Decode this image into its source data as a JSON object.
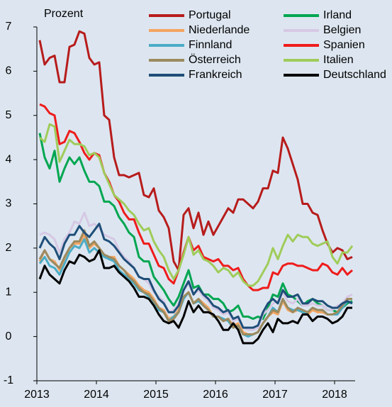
{
  "chart_data": {
    "type": "line",
    "y_label": "Prozent",
    "categories": [
      "2013",
      null,
      null,
      null,
      null,
      null,
      null,
      null,
      null,
      null,
      null,
      null,
      "2014",
      null,
      null,
      null,
      null,
      null,
      null,
      null,
      null,
      null,
      null,
      null,
      "2015",
      null,
      null,
      null,
      null,
      null,
      null,
      null,
      null,
      null,
      null,
      null,
      "2016",
      null,
      null,
      null,
      null,
      null,
      null,
      null,
      null,
      null,
      null,
      null,
      "2017",
      null,
      null,
      null,
      null,
      null,
      null,
      null,
      null,
      null,
      null,
      null,
      "2018",
      null,
      null,
      null
    ],
    "ylim": [
      -1,
      7
    ],
    "yticks": [
      -1,
      0,
      1,
      2,
      3,
      4,
      5,
      6,
      7
    ],
    "legend": "upper right",
    "series": [
      {
        "name": "Portugal",
        "color": "#b71c1c",
        "values": [
          6.7,
          6.15,
          6.3,
          6.35,
          5.75,
          5.75,
          6.55,
          6.6,
          6.9,
          6.85,
          6.3,
          6.15,
          6.2,
          5.0,
          4.9,
          4.05,
          3.65,
          3.65,
          3.6,
          3.65,
          3.7,
          3.2,
          3.15,
          3.35,
          2.85,
          2.7,
          2.45,
          1.7,
          1.5,
          2.75,
          2.9,
          2.45,
          2.8,
          2.3,
          2.6,
          2.3,
          2.5,
          2.7,
          2.9,
          2.8,
          3.1,
          3.1,
          3.0,
          2.9,
          3.05,
          3.35,
          3.35,
          3.75,
          3.7,
          4.5,
          4.25,
          3.9,
          3.55,
          3.0,
          3.0,
          2.8,
          2.75,
          2.4,
          2.1,
          1.9,
          2.0,
          1.95,
          1.75,
          1.8
        ]
      },
      {
        "name": "Irland",
        "color": "#00a651",
        "values": [
          4.6,
          4.05,
          3.8,
          4.2,
          3.5,
          3.8,
          4.05,
          3.9,
          4.05,
          3.75,
          3.5,
          3.5,
          3.4,
          3.05,
          3.05,
          2.95,
          2.7,
          2.55,
          2.35,
          2.25,
          1.8,
          1.7,
          1.7,
          1.35,
          1.2,
          1.05,
          0.85,
          0.7,
          0.9,
          1.2,
          1.5,
          1.1,
          1.15,
          0.95,
          0.95,
          0.85,
          0.85,
          0.75,
          0.55,
          0.6,
          0.7,
          0.45,
          0.45,
          0.4,
          0.45,
          0.4,
          0.65,
          0.95,
          0.9,
          1.2,
          0.95,
          0.9,
          0.8,
          0.7,
          0.8,
          0.85,
          0.75,
          0.7,
          0.6,
          0.6,
          0.55,
          0.65,
          0.75,
          0.8
        ]
      },
      {
        "name": "Niederlande",
        "color": "#f4a460",
        "values": [
          1.7,
          1.95,
          1.75,
          1.7,
          1.5,
          1.75,
          2.0,
          2.1,
          2.1,
          2.3,
          2.0,
          2.1,
          2.0,
          1.85,
          1.8,
          1.8,
          1.6,
          1.5,
          1.4,
          1.3,
          1.15,
          1.05,
          1.0,
          0.85,
          0.65,
          0.6,
          0.4,
          0.45,
          0.6,
          0.9,
          1.0,
          0.75,
          0.85,
          0.75,
          0.65,
          0.45,
          0.45,
          0.35,
          0.4,
          0.25,
          0.3,
          0.1,
          0.05,
          0.05,
          0.1,
          0.3,
          0.45,
          0.55,
          0.5,
          0.8,
          0.6,
          0.55,
          0.6,
          0.55,
          0.5,
          0.6,
          0.55,
          0.55,
          0.5,
          0.5,
          0.55,
          0.7,
          0.85,
          0.85
        ]
      },
      {
        "name": "Belgien",
        "color": "#d6c8e4",
        "values": [
          2.3,
          2.35,
          2.3,
          2.2,
          1.9,
          2.2,
          2.35,
          2.6,
          2.55,
          2.8,
          2.5,
          2.55,
          2.45,
          2.3,
          2.25,
          2.2,
          1.95,
          1.8,
          1.7,
          1.55,
          1.35,
          1.3,
          1.2,
          1.0,
          0.9,
          0.8,
          0.55,
          0.6,
          0.75,
          1.05,
          1.2,
          0.95,
          1.05,
          0.9,
          0.8,
          0.65,
          0.6,
          0.5,
          0.55,
          0.35,
          0.4,
          0.2,
          0.15,
          0.15,
          0.2,
          0.5,
          0.6,
          0.75,
          0.8,
          1.0,
          0.8,
          0.75,
          0.85,
          0.7,
          0.7,
          0.75,
          0.7,
          0.7,
          0.6,
          0.6,
          0.7,
          0.75,
          0.9,
          0.95
        ]
      },
      {
        "name": "Finnland",
        "color": "#4bacc6",
        "values": [
          1.65,
          1.8,
          1.6,
          1.55,
          1.4,
          1.65,
          1.9,
          2.05,
          2.0,
          2.2,
          1.9,
          2.0,
          1.9,
          1.8,
          1.75,
          1.7,
          1.5,
          1.4,
          1.3,
          1.2,
          1.05,
          1.0,
          0.9,
          0.75,
          0.6,
          0.55,
          0.35,
          0.45,
          0.55,
          0.85,
          1.0,
          0.75,
          0.8,
          0.7,
          0.6,
          0.45,
          0.45,
          0.4,
          0.35,
          0.2,
          0.25,
          0.05,
          0.0,
          0.05,
          0.1,
          0.3,
          0.45,
          0.65,
          0.55,
          0.85,
          0.65,
          0.6,
          0.6,
          0.55,
          0.55,
          0.65,
          0.6,
          0.6,
          0.5,
          0.5,
          0.5,
          0.65,
          0.8,
          0.75
        ]
      },
      {
        "name": "Spanien",
        "color": "#ee1c1c",
        "values": [
          5.25,
          5.2,
          5.05,
          5.0,
          4.35,
          4.4,
          4.65,
          4.6,
          4.4,
          4.15,
          4.0,
          4.15,
          4.1,
          3.7,
          3.5,
          3.2,
          3.05,
          2.8,
          2.65,
          2.65,
          2.35,
          2.1,
          2.1,
          1.85,
          1.6,
          1.55,
          1.3,
          1.2,
          1.5,
          1.9,
          2.25,
          1.95,
          2.05,
          1.8,
          1.75,
          1.7,
          1.75,
          1.6,
          1.6,
          1.5,
          1.55,
          1.3,
          1.15,
          1.05,
          1.05,
          1.1,
          1.1,
          1.45,
          1.4,
          1.6,
          1.65,
          1.65,
          1.6,
          1.6,
          1.55,
          1.5,
          1.5,
          1.65,
          1.6,
          1.45,
          1.4,
          1.55,
          1.4,
          1.5
        ]
      },
      {
        "name": "Österreich",
        "color": "#9c8a5f",
        "values": [
          1.75,
          1.95,
          1.75,
          1.65,
          1.55,
          1.8,
          2.0,
          2.15,
          2.15,
          2.4,
          2.05,
          2.15,
          2.0,
          1.85,
          1.8,
          1.75,
          1.6,
          1.5,
          1.35,
          1.25,
          1.1,
          1.0,
          0.95,
          0.8,
          0.65,
          0.55,
          0.35,
          0.4,
          0.55,
          0.9,
          1.0,
          0.75,
          0.85,
          0.7,
          0.6,
          0.45,
          0.45,
          0.35,
          0.4,
          0.2,
          0.25,
          0.05,
          0.05,
          0.05,
          0.1,
          0.3,
          0.45,
          0.6,
          0.55,
          0.85,
          0.65,
          0.55,
          0.65,
          0.6,
          0.55,
          0.65,
          0.6,
          0.6,
          0.5,
          0.5,
          0.55,
          0.7,
          0.85,
          0.85
        ]
      },
      {
        "name": "Italien",
        "color": "#9fcc5a",
        "values": [
          4.5,
          4.4,
          4.8,
          4.75,
          3.95,
          4.2,
          4.45,
          4.35,
          4.35,
          4.3,
          4.1,
          4.15,
          4.05,
          3.7,
          3.45,
          3.2,
          3.1,
          3.0,
          2.85,
          2.75,
          2.55,
          2.4,
          2.45,
          2.15,
          1.95,
          1.8,
          1.5,
          1.3,
          1.5,
          1.85,
          2.25,
          1.85,
          1.95,
          1.75,
          1.7,
          1.6,
          1.45,
          1.55,
          1.5,
          1.35,
          1.45,
          1.25,
          1.15,
          1.15,
          1.25,
          1.45,
          1.65,
          2.0,
          1.75,
          2.05,
          2.3,
          2.15,
          2.3,
          2.25,
          2.25,
          2.1,
          2.05,
          2.1,
          2.15,
          1.8,
          1.65,
          1.9,
          1.9,
          2.05
        ]
      },
      {
        "name": "Frankreich",
        "color": "#1f4e79",
        "values": [
          2.0,
          2.25,
          2.1,
          2.0,
          1.75,
          2.1,
          2.3,
          2.3,
          2.5,
          2.35,
          2.25,
          2.4,
          2.55,
          2.2,
          2.15,
          2.05,
          1.9,
          1.75,
          1.65,
          1.55,
          1.35,
          1.3,
          1.3,
          1.05,
          0.85,
          0.75,
          0.55,
          0.55,
          0.7,
          1.05,
          1.25,
          0.95,
          1.1,
          0.95,
          0.85,
          0.7,
          0.65,
          0.55,
          0.6,
          0.4,
          0.45,
          0.2,
          0.2,
          0.2,
          0.25,
          0.55,
          0.75,
          0.85,
          0.75,
          1.05,
          0.9,
          0.9,
          0.95,
          0.75,
          0.75,
          0.85,
          0.8,
          0.8,
          0.7,
          0.65,
          0.65,
          0.75,
          0.8,
          0.75
        ]
      },
      {
        "name": "Deutschland",
        "color": "#000000",
        "values": [
          1.3,
          1.6,
          1.4,
          1.3,
          1.2,
          1.5,
          1.7,
          1.65,
          1.85,
          1.8,
          1.7,
          1.75,
          1.95,
          1.55,
          1.55,
          1.6,
          1.45,
          1.35,
          1.25,
          1.1,
          0.9,
          0.9,
          0.85,
          0.7,
          0.5,
          0.35,
          0.3,
          0.35,
          0.2,
          0.45,
          0.8,
          0.55,
          0.7,
          0.55,
          0.55,
          0.5,
          0.35,
          0.15,
          0.15,
          0.3,
          0.15,
          -0.15,
          -0.15,
          -0.15,
          -0.05,
          0.15,
          0.3,
          0.1,
          0.4,
          0.3,
          0.3,
          0.35,
          0.3,
          0.5,
          0.5,
          0.35,
          0.45,
          0.45,
          0.4,
          0.3,
          0.35,
          0.45,
          0.65,
          0.65
        ]
      }
    ]
  }
}
